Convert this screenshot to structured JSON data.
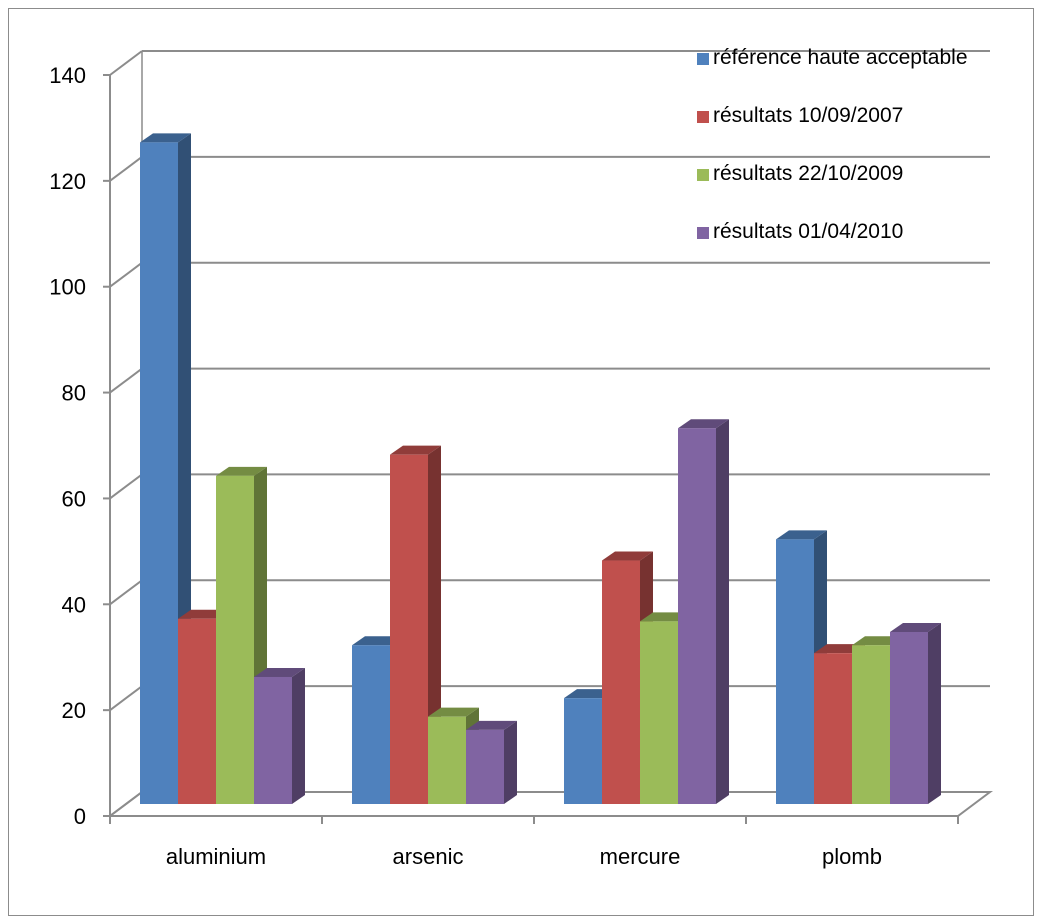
{
  "chart_data": {
    "type": "bar",
    "three_d": true,
    "categories": [
      "aluminium",
      "arsenic",
      "mercure",
      "plomb"
    ],
    "series": [
      {
        "name": "référence haute acceptable",
        "values": [
          125,
          30,
          20,
          50
        ],
        "color": "#4F81BD"
      },
      {
        "name": "résultats 10/09/2007",
        "values": [
          35,
          66,
          46,
          28.5
        ],
        "color": "#C0504D"
      },
      {
        "name": "résultats 22/10/2009",
        "values": [
          62,
          16.5,
          34.5,
          30
        ],
        "color": "#9BBB59"
      },
      {
        "name": "résultats 01/04/2010",
        "values": [
          24,
          14,
          71,
          32.5
        ],
        "color": "#8064A2"
      }
    ],
    "yticks": [
      0,
      20,
      40,
      60,
      80,
      100,
      120,
      140
    ],
    "ylim": [
      0,
      140
    ],
    "grid": true,
    "legend_position": "top-right",
    "title": "",
    "xlabel": "",
    "ylabel": ""
  }
}
